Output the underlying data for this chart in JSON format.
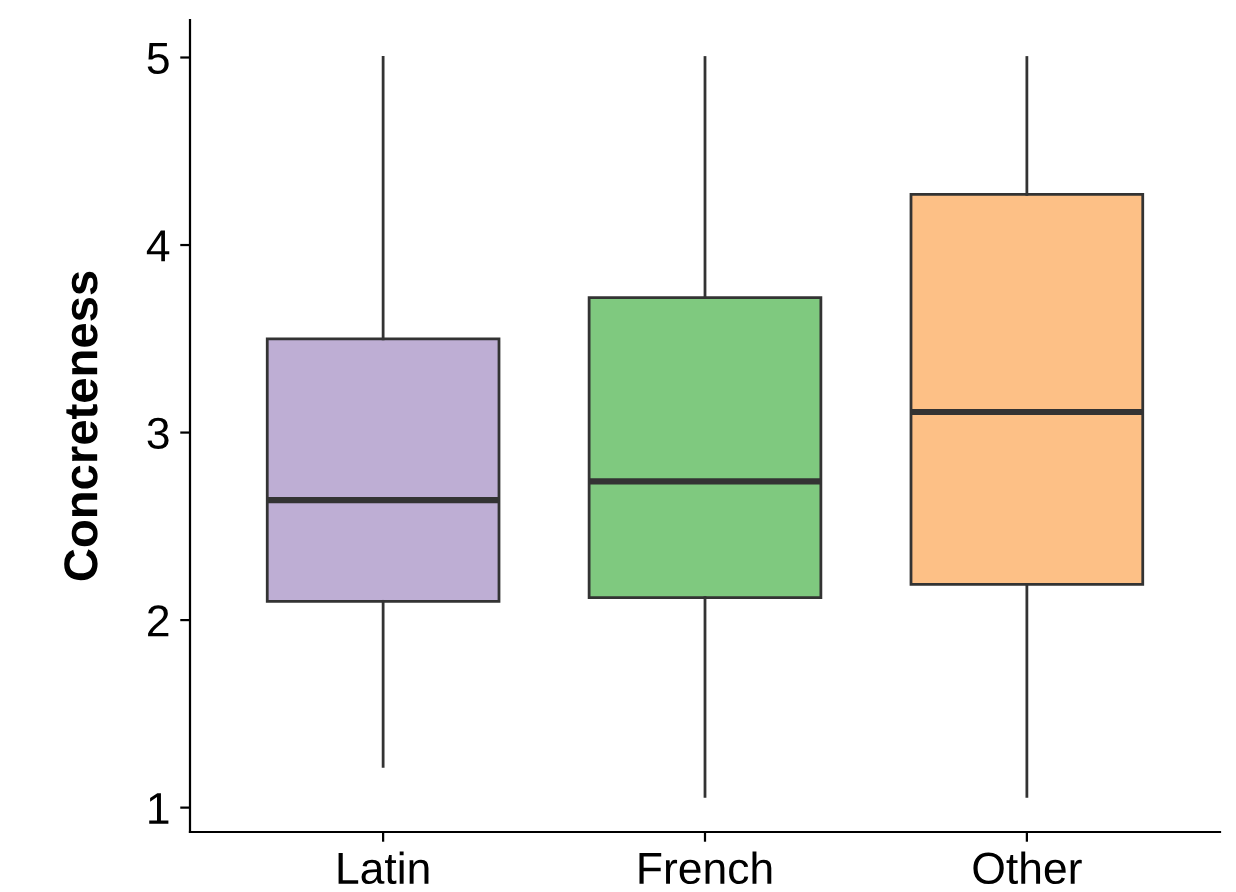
{
  "chart_data": {
    "type": "box",
    "ylabel": "Concreteness",
    "categories": [
      "Latin",
      "French",
      "Other"
    ],
    "colors": [
      "#beaed4",
      "#7fc97f",
      "#fdc086"
    ],
    "boxes": [
      {
        "low": 1.22,
        "q1": 2.1,
        "median": 2.64,
        "q3": 3.5,
        "high": 5
      },
      {
        "low": 1.06,
        "q1": 2.12,
        "median": 2.74,
        "q3": 3.72,
        "high": 5
      },
      {
        "low": 1.06,
        "q1": 2.19,
        "median": 3.11,
        "q3": 4.27,
        "high": 5
      }
    ],
    "ylim": [
      0.87,
      5.2
    ],
    "yticks": [
      1,
      2,
      3,
      4,
      5
    ],
    "grid": false,
    "legend": false
  }
}
